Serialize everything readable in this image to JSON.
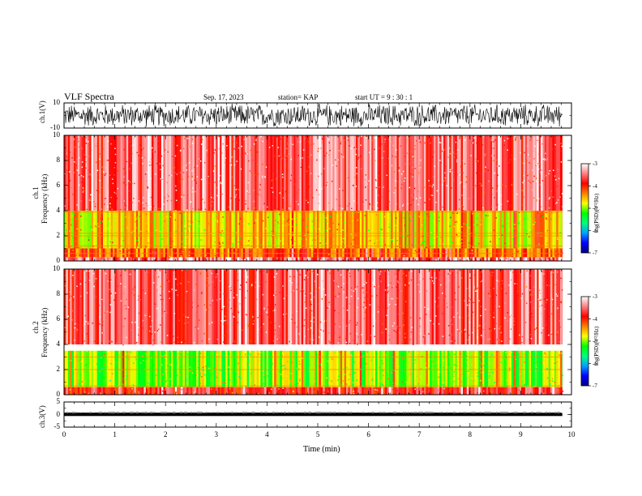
{
  "header": {
    "title": "VLF Spectra",
    "date": "Sep. 17, 2023",
    "station": "station= KAP",
    "start": "start  UT =   9 : 30 : 1"
  },
  "chart_data": [
    {
      "type": "line",
      "panel": "ch1-waveform",
      "ylabel": "ch.1(V)",
      "ylim": [
        -10,
        10
      ],
      "yticks": [
        "10",
        "-10"
      ],
      "xlim": [
        0,
        10
      ],
      "trace_color": "#000000",
      "data_extent_min": 9.82,
      "note_values": "dense noise, amplitude ~ +/-10 V"
    },
    {
      "type": "heatmap",
      "panel": "ch1-spectrogram",
      "ylabel": "ch.1\nFrequency (kHz)",
      "ylabel_top": "ch.1",
      "ylabel_bottom": "Frequency (kHz)",
      "ylim": [
        0,
        10
      ],
      "yticks": [
        "0",
        "2",
        "4",
        "6",
        "8",
        "10"
      ],
      "xlim": [
        0,
        10
      ],
      "data_extent_min": 9.82,
      "bands": [
        {
          "from_khz": 4.0,
          "to_khz": 10.0,
          "level": -3.6
        },
        {
          "from_khz": 1.0,
          "to_khz": 4.0,
          "level": -4.6
        },
        {
          "from_khz": 0.3,
          "to_khz": 1.0,
          "level": -4.2
        },
        {
          "from_khz": 0.0,
          "to_khz": 0.3,
          "level": -3.5
        }
      ],
      "lines_khz": [
        0.6,
        1.2,
        2.0,
        2.2,
        3.9
      ]
    },
    {
      "type": "heatmap",
      "panel": "ch2-spectrogram",
      "ylabel_top": "ch.2",
      "ylabel_bottom": "Frequency (kHz)",
      "ylim": [
        0,
        10
      ],
      "yticks": [
        "0",
        "2",
        "4",
        "6",
        "8",
        "10"
      ],
      "xlim": [
        0,
        10
      ],
      "data_extent_min": 9.82,
      "bands": [
        {
          "from_khz": 4.0,
          "to_khz": 10.0,
          "level": -3.6
        },
        {
          "from_khz": 0.6,
          "to_khz": 3.5,
          "level": -5.0
        },
        {
          "from_khz": 0.0,
          "to_khz": 0.6,
          "level": -3.8
        }
      ],
      "lines_khz": [
        0.7,
        2.0,
        3.0
      ]
    },
    {
      "type": "line",
      "panel": "ch3-waveform",
      "ylabel": "ch.3(V)",
      "ylim": [
        -5,
        5
      ],
      "yticks": [
        "5",
        "0",
        "-5"
      ],
      "xlim": [
        0,
        10
      ],
      "xlabel": "Time (min)",
      "xticks": [
        "0",
        "1",
        "2",
        "3",
        "4",
        "5",
        "6",
        "7",
        "8",
        "9",
        "10"
      ],
      "trace_color": "#000000",
      "data_extent_min": 9.82,
      "note_values": "thick band near 0 V, amplitude ~ +/-0.6 V"
    }
  ],
  "colorbar": {
    "label": "log(PSD)(V²/Hz)",
    "range": [
      -7,
      -3
    ],
    "ticks": [
      "-3",
      "-4",
      "-5",
      "-6",
      "-7"
    ],
    "stops": [
      "#000080",
      "#0000ff",
      "#00a0ff",
      "#00ff80",
      "#00ff00",
      "#ffff00",
      "#ff8000",
      "#ff0000",
      "#ff8080",
      "#ffffff"
    ]
  }
}
